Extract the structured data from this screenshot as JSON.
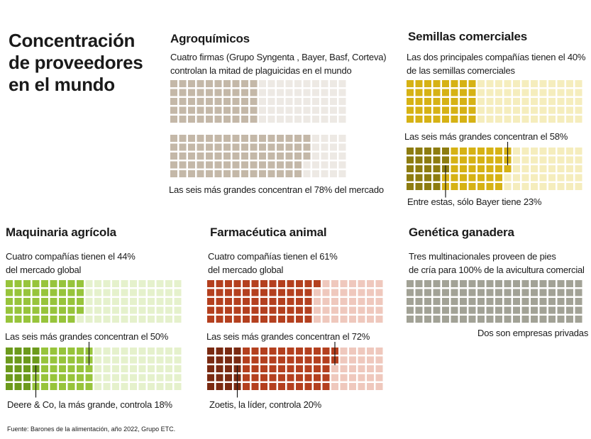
{
  "title": {
    "line1": "Concentración",
    "line2": "de proveedores",
    "line3": "en el mundo"
  },
  "source": "Fuente: Barones de la alimentación, año 2022, Grupo ETC.",
  "chart_data": [
    {
      "type": "waffle",
      "id": "agro",
      "title": "Agroquímicos",
      "description": [
        "Cuatro firmas  (Grupo Syngenta , Bayer, Basf, Corteva)",
        "controlan la mitad de plaguicidas en el mundo"
      ],
      "total_cells": 100,
      "grids": [
        {
          "highlight_percent": 50,
          "note": ""
        },
        {
          "highlight_percent": 78,
          "note": "Las seis más grandes concentran el 78% del mercado"
        }
      ],
      "colors": {
        "strong": "#c4b8a8",
        "light": "#ede9e4"
      }
    },
    {
      "type": "waffle",
      "id": "semillas",
      "title": "Semillas comerciales",
      "description": [
        "Las dos principales compañías tienen el 40%",
        "de las semillas comerciales"
      ],
      "total_cells": 100,
      "grids": [
        {
          "highlight_percent": 40,
          "note": ""
        },
        {
          "highlight_percent": 58,
          "leader_percent": 23,
          "note": "Las seis más grandes concentran el 58%",
          "leader_note": "Entre estas, sólo Bayer tiene 23%"
        }
      ],
      "colors": {
        "dark": "#8d7c10",
        "strong": "#d6b214",
        "light": "#f5edbd"
      }
    },
    {
      "type": "waffle",
      "id": "maquinaria",
      "title": "Maquinaria agrícola",
      "description": [
        "Cuatro compañías tienen el 44%",
        "del mercado global"
      ],
      "total_cells": 100,
      "grids": [
        {
          "highlight_percent": 44,
          "note": ""
        },
        {
          "highlight_percent": 50,
          "leader_percent": 18,
          "note": "Las seis más grandes concentran el 50%",
          "leader_note": "Deere & Co, la más grande, controla 18%"
        }
      ],
      "colors": {
        "dark": "#6c9a1c",
        "strong": "#97c43b",
        "light": "#e5f1cc"
      }
    },
    {
      "type": "waffle",
      "id": "farma",
      "title": "Farmacéutica animal",
      "description": [
        "Cuatro compañías tienen el 61%",
        "del mercado global"
      ],
      "total_cells": 100,
      "grids": [
        {
          "highlight_percent": 61,
          "note": ""
        },
        {
          "highlight_percent": 72,
          "leader_percent": 20,
          "note": "Las seis más grandes concentran el 72%",
          "leader_note": "Zoetis, la líder, controla 20%"
        }
      ],
      "colors": {
        "dark": "#7a2a12",
        "strong": "#b4401f",
        "light": "#efc8bd"
      }
    },
    {
      "type": "waffle",
      "id": "genetica",
      "title": "Genética ganadera",
      "description": [
        "Tres multinacionales proveen de pies",
        "de cría para 100% de la avicultura comercial"
      ],
      "total_cells": 100,
      "grids": [
        {
          "highlight_percent": 100,
          "note": "Dos son empresas privadas"
        }
      ],
      "colors": {
        "strong": "#a2a296",
        "light": "#e3e3dd"
      }
    }
  ]
}
